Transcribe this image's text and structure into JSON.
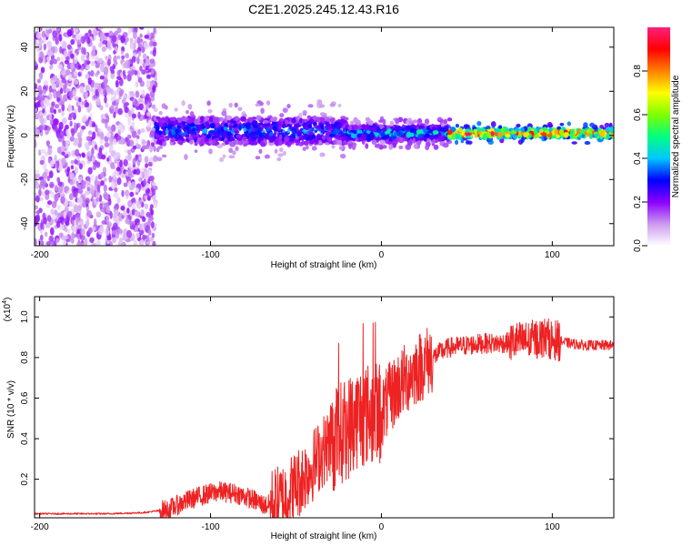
{
  "chart_data": [
    {
      "type": "heatmap",
      "title": "C2E1.2025.245.12.43.R16",
      "xlabel": "Height of straight line (km)",
      "ylabel": "Frequency (Hz)",
      "xlim": [
        -203,
        136
      ],
      "ylim": [
        -50,
        49
      ],
      "x_ticks": [
        -200,
        -100,
        0,
        100
      ],
      "x_tick_labels": [
        "-200",
        "-100",
        "0",
        "100"
      ],
      "y_ticks": [
        -40,
        -20,
        0,
        20,
        40
      ],
      "y_tick_labels": [
        "-40",
        "-20",
        "0",
        "20",
        "40"
      ],
      "colorbar": {
        "label": "Normalized spectral amplitude",
        "range": [
          0,
          1
        ],
        "ticks": [
          0.0,
          0.2,
          0.4,
          0.6,
          0.8
        ],
        "tick_labels": [
          "0.0",
          "0.2",
          "0.4",
          "0.6",
          "0.8"
        ],
        "colormap": [
          "#ffffff",
          "#cc99ee",
          "#8a00ff",
          "#0000ff",
          "#00c8ff",
          "#00ff80",
          "#80ff00",
          "#ffff00",
          "#ff8000",
          "#ff0000",
          "#ff2080"
        ]
      },
      "regions": [
        {
          "x": [
            -203,
            -132
          ],
          "freq": [
            -50,
            49
          ],
          "amplitude": 0.15,
          "description": "broadband noise"
        },
        {
          "x": [
            -132,
            -20
          ],
          "freq_center": 2,
          "freq_halfwidth": 6,
          "amplitude": 0.35
        },
        {
          "x": [
            -20,
            40
          ],
          "freq_center": 1,
          "freq_halfwidth": 3,
          "amplitude": 0.45
        },
        {
          "x": [
            40,
            136
          ],
          "freq_center": 1,
          "freq_halfwidth": 2,
          "amplitude": 0.9
        }
      ]
    },
    {
      "type": "line",
      "xlabel": "Height of straight line (km)",
      "ylabel": "SNR (10 * v/v)",
      "y_scale_label": "(x10",
      "y_scale_exp": "4",
      "xlim": [
        -203,
        136
      ],
      "ylim": [
        0.01,
        1.1
      ],
      "x_ticks": [
        -200,
        -100,
        0,
        100
      ],
      "x_tick_labels": [
        "-200",
        "-100",
        "0",
        "100"
      ],
      "y_ticks": [
        0.2,
        0.4,
        0.6,
        0.8,
        1.0
      ],
      "y_tick_labels": [
        "0.2",
        "0.4",
        "0.6",
        "0.8",
        "1.0"
      ],
      "color": "#ee2222",
      "series": [
        {
          "name": "SNR",
          "x": [
            -203,
            -180,
            -160,
            -140,
            -125,
            -115,
            -105,
            -95,
            -85,
            -75,
            -68,
            -60,
            -52,
            -45,
            -40,
            -35,
            -30,
            -25,
            -20,
            -15,
            -10,
            -5,
            0,
            5,
            10,
            15,
            20,
            25,
            30,
            35,
            40,
            50,
            60,
            70,
            80,
            85,
            90,
            95,
            100,
            105,
            110,
            120,
            136
          ],
          "y": [
            0.03,
            0.03,
            0.03,
            0.035,
            0.05,
            0.09,
            0.12,
            0.14,
            0.13,
            0.1,
            0.07,
            0.09,
            0.15,
            0.22,
            0.27,
            0.33,
            0.38,
            0.42,
            0.45,
            0.5,
            0.52,
            0.52,
            0.53,
            0.6,
            0.66,
            0.7,
            0.74,
            0.77,
            0.8,
            0.83,
            0.85,
            0.86,
            0.87,
            0.87,
            0.88,
            0.88,
            0.89,
            0.9,
            0.89,
            0.88,
            0.87,
            0.86,
            0.86
          ]
        }
      ]
    }
  ]
}
